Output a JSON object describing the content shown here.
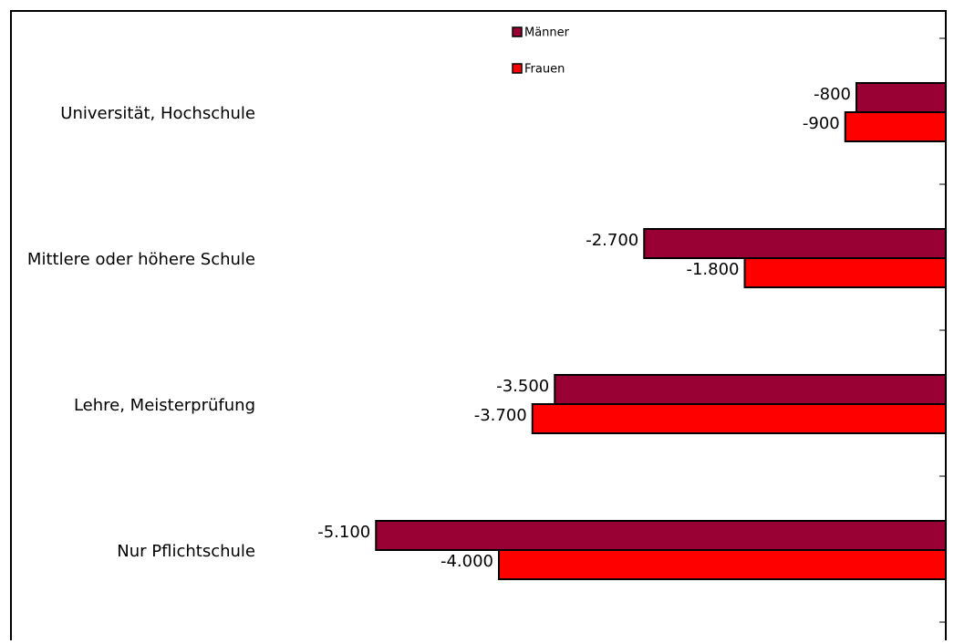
{
  "chart_data": {
    "type": "bar",
    "orientation": "horizontal",
    "categories": [
      "Universität, Hochschule",
      "Mittlere oder höhere Schule",
      "Lehre, Meisterprüfung",
      "Nur Pflichtschule"
    ],
    "series": [
      {
        "name": "Männer",
        "color": "#990033",
        "values": [
          -800,
          -2700,
          -3500,
          -5100
        ],
        "labels": [
          "-800",
          "-2.700",
          "-3.500",
          "-5.100"
        ]
      },
      {
        "name": "Frauen",
        "color": "#ff0000",
        "values": [
          -900,
          -1800,
          -3700,
          -4000
        ],
        "labels": [
          "-900",
          "-1.800",
          "-3.700",
          "-4.000"
        ]
      }
    ],
    "xlim": [
      -7500,
      0
    ],
    "legend": {
      "position": "top-center",
      "entries": [
        "Männer",
        "Frauen"
      ]
    },
    "grid": false
  }
}
